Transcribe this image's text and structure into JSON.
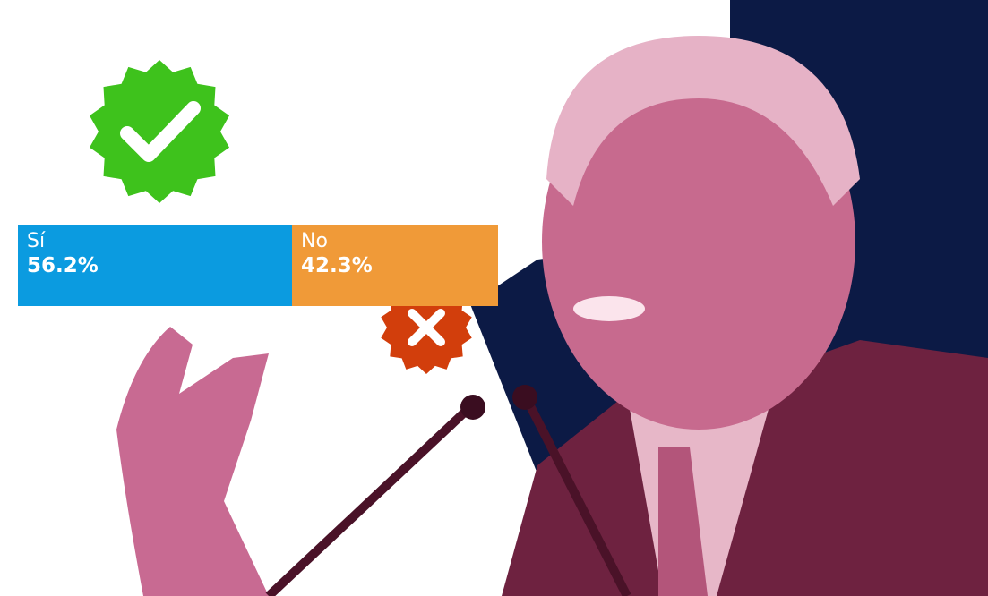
{
  "chart_data": {
    "type": "bar",
    "orientation": "horizontal-stacked",
    "categories": [
      "Sí",
      "No"
    ],
    "values": [
      56.2,
      42.3
    ],
    "value_labels": [
      "56.2%",
      "42.3%"
    ],
    "colors": [
      "#0b9be0",
      "#f09a38"
    ],
    "title": "",
    "xlabel": "",
    "ylabel": ""
  },
  "badges": {
    "yes": {
      "icon": "check-icon",
      "color": "#3ec21c"
    },
    "no": {
      "icon": "x-icon",
      "color": "#d23e0c"
    }
  },
  "colors": {
    "navy": "#0c1a45",
    "photo_tint": "#b3557a"
  }
}
